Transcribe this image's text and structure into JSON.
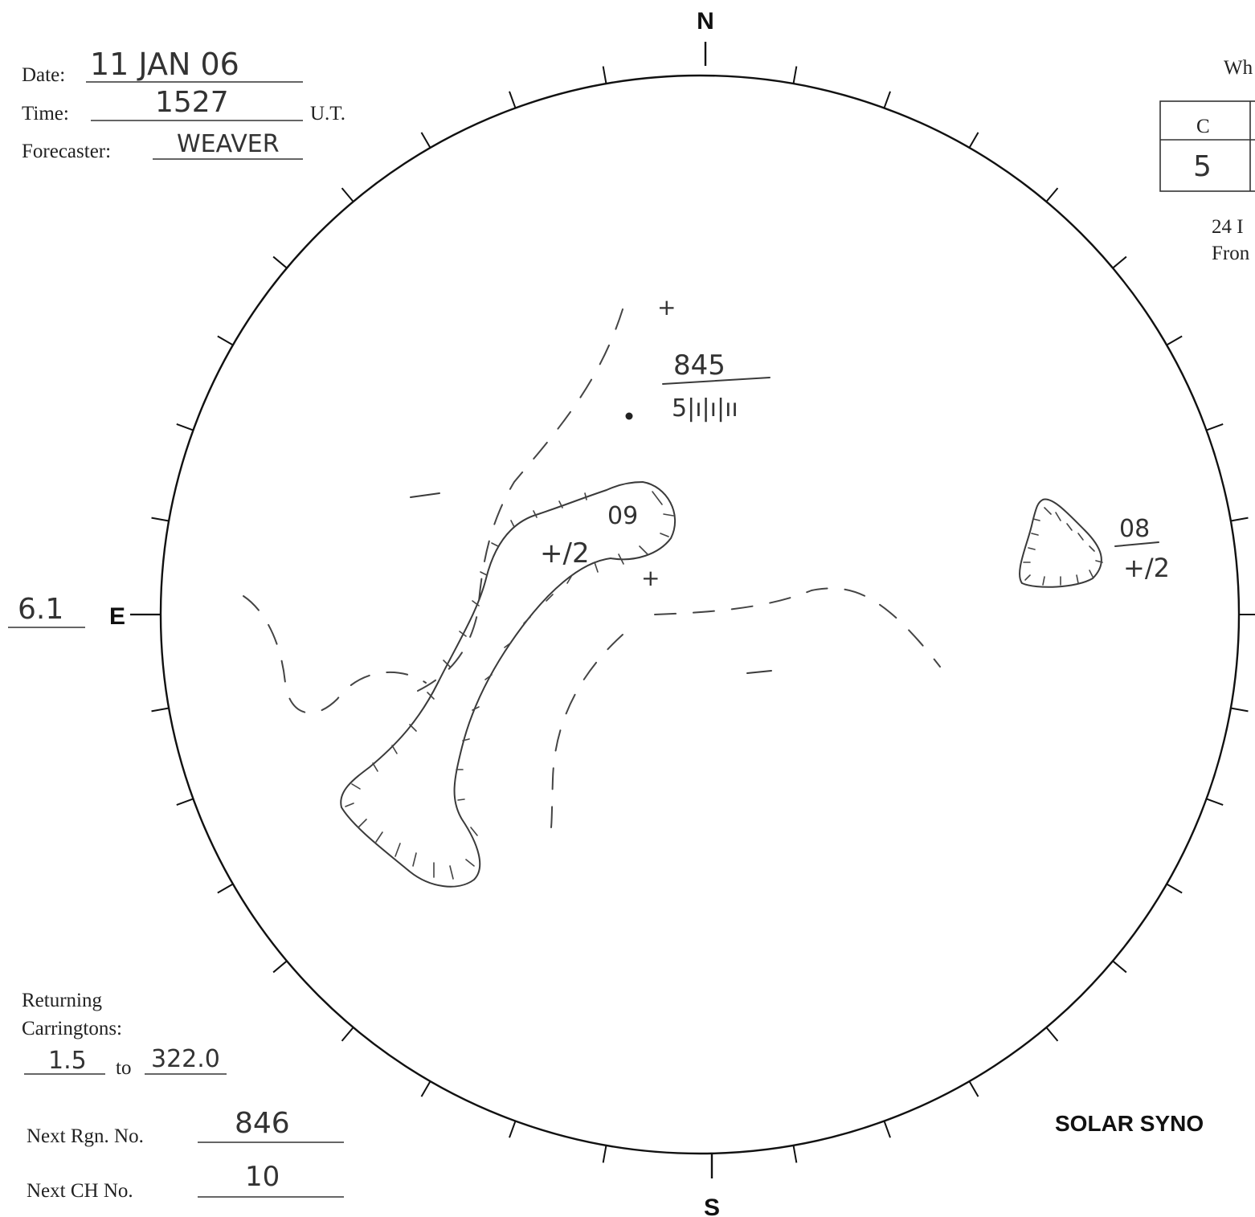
{
  "header": {
    "date_label": "Date:",
    "date_value": "11 JAN 06",
    "time_label": "Time:",
    "time_value": "1527",
    "time_unit": "U.T.",
    "forecaster_label": "Forecaster:",
    "forecaster_value": "WEAVER"
  },
  "disk": {
    "north_label": "N",
    "south_label": "S",
    "east_label": "E",
    "east_value": "6.1"
  },
  "corner_box": {
    "partial_header": "Wh",
    "table_header": "C",
    "table_value": "5",
    "note_line1": "24 I",
    "note_line2": "Fron"
  },
  "annotations": {
    "region_number": "845",
    "region_detail": "5|ı|ı|ıı",
    "hole_one_number": "09",
    "hole_one_polarity": "+/2",
    "hole_two_number": "08",
    "hole_two_polarity": "+/2",
    "plus_sign": "+"
  },
  "footer": {
    "returning_label_1": "Returning",
    "returning_label_2": "Carringtons:",
    "carrington_from": "1.5",
    "to_label": "to",
    "carrington_to": "322.0",
    "next_region_label": "Next Rgn. No.",
    "next_region_value": "846",
    "next_ch_label": "Next CH No.",
    "next_ch_value": "10",
    "title_partial": "SOLAR SYNO"
  }
}
